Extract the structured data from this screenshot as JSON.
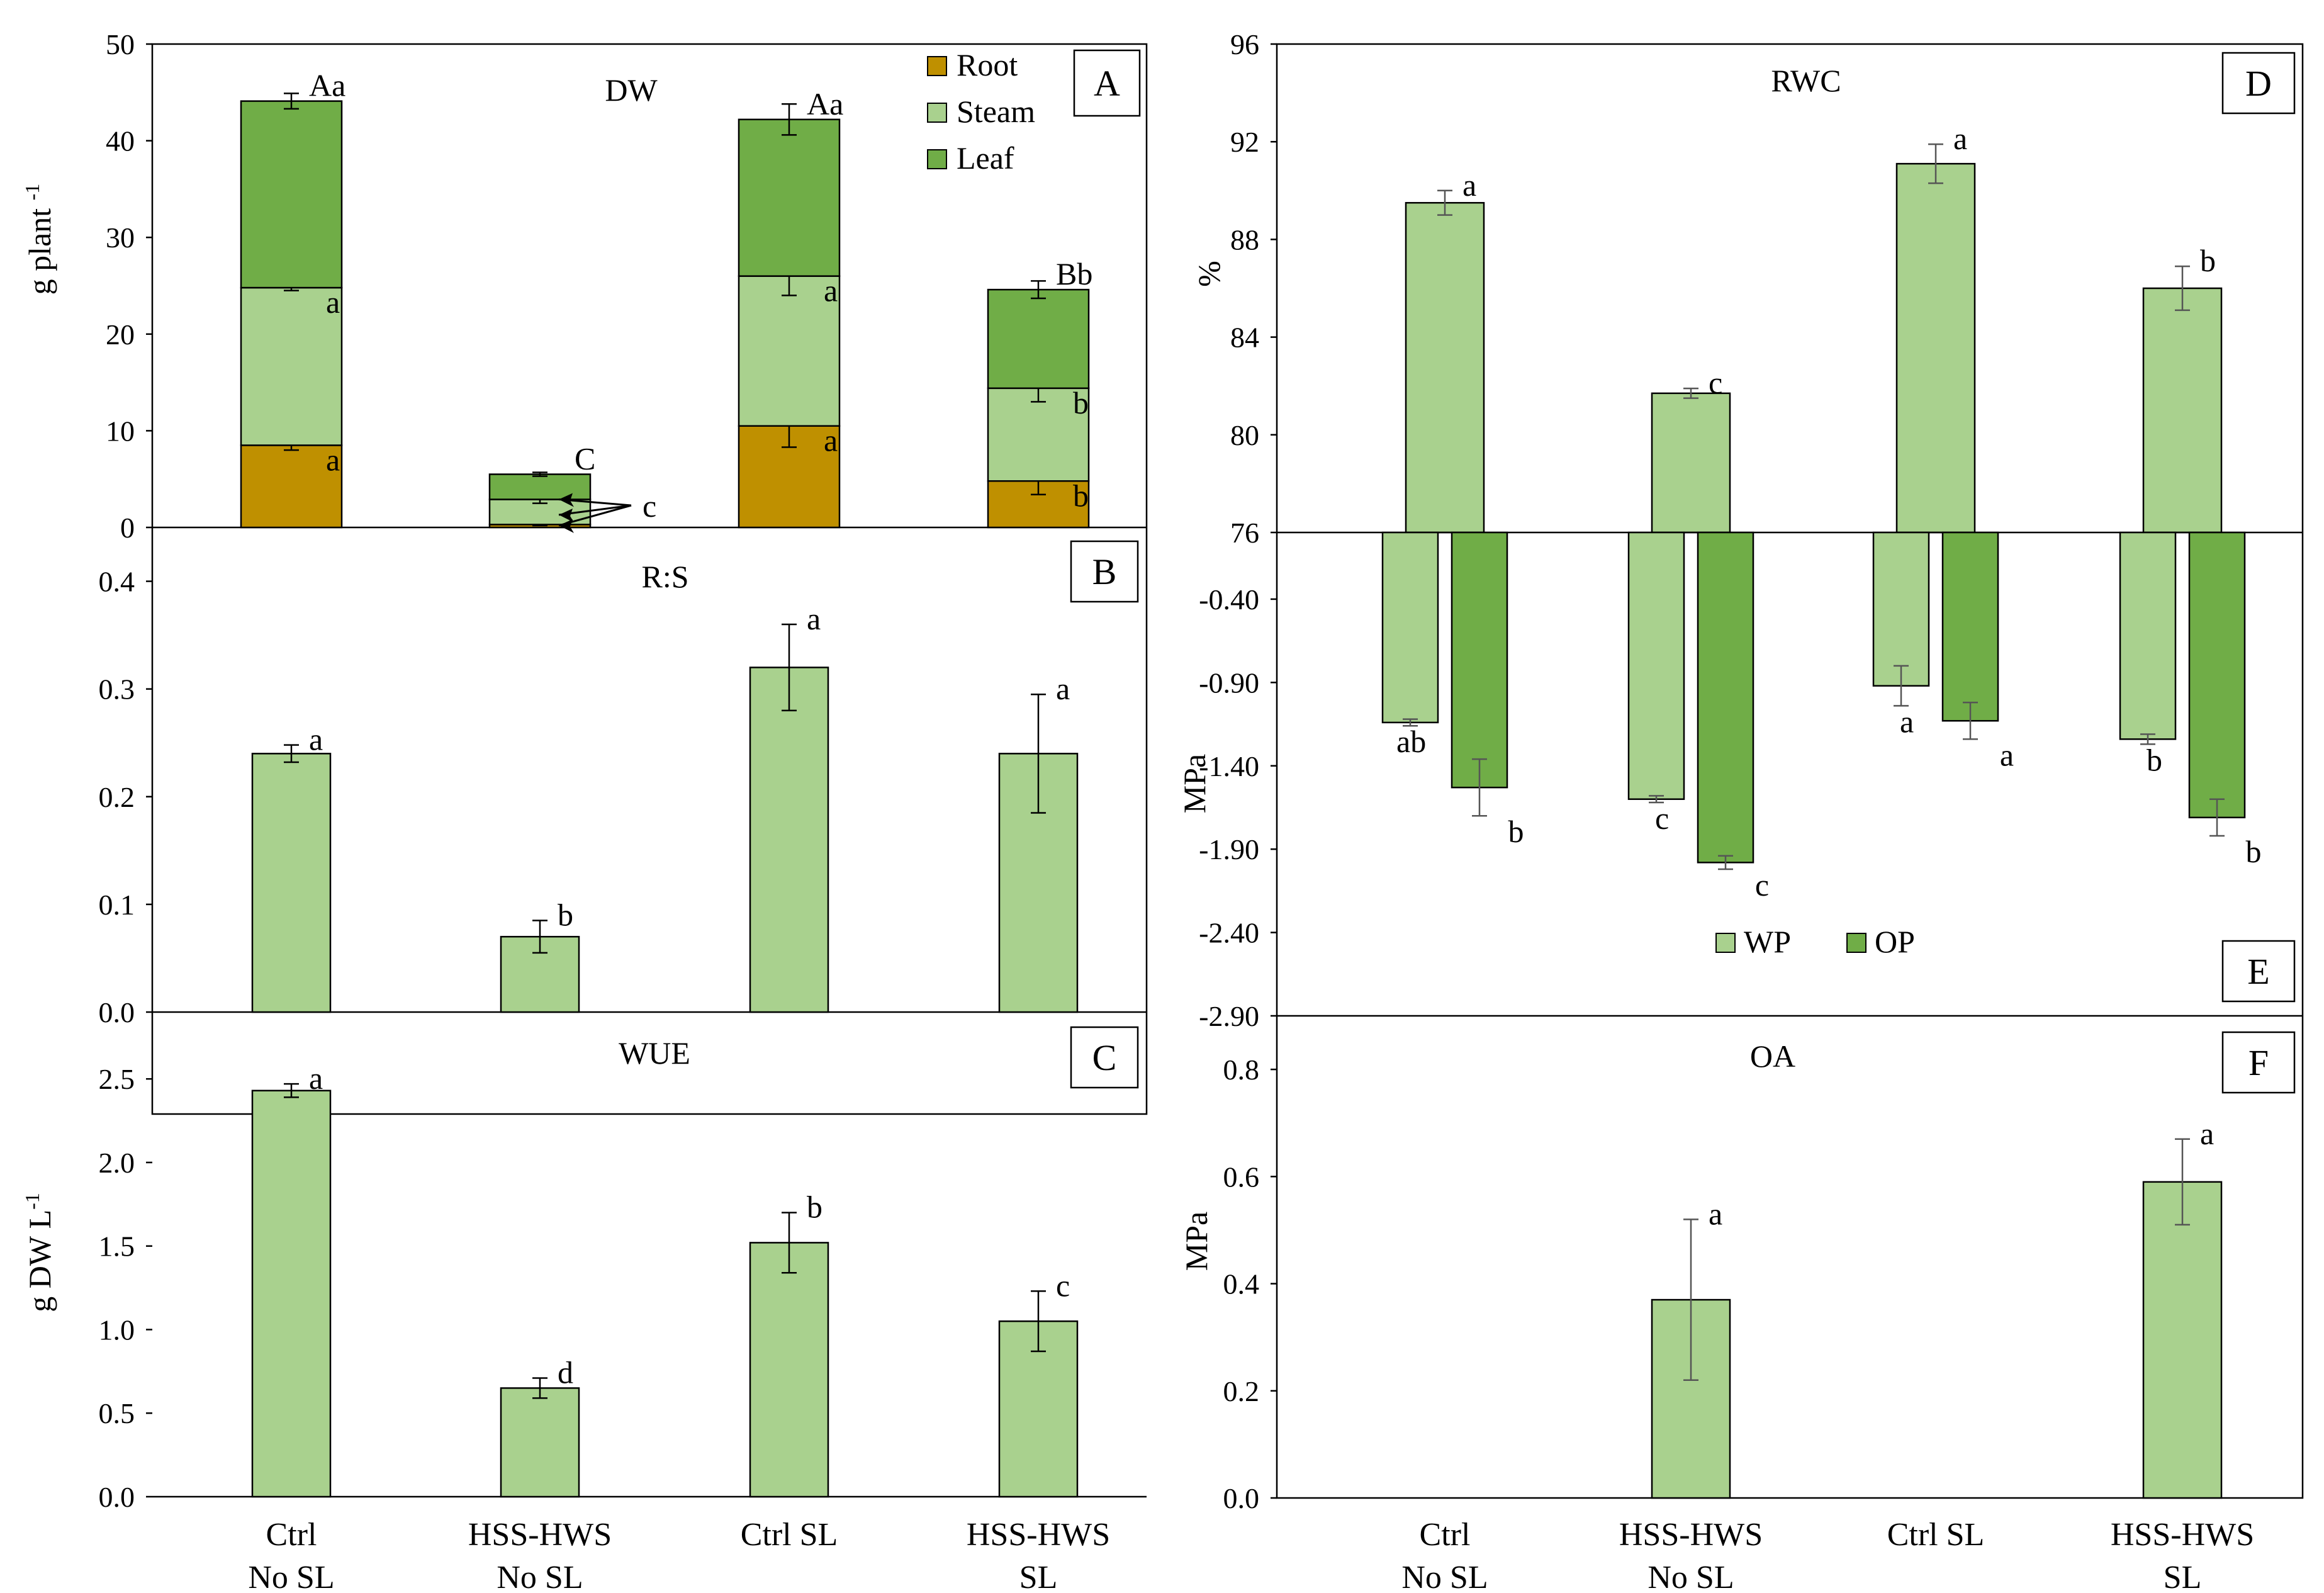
{
  "colors": {
    "root": "#BF9000",
    "stem": "#A9D18E",
    "leaf": "#70AD47"
  },
  "categories": [
    "Ctrl\nNo SL",
    "HSS-HWS\nNo SL",
    "Ctrl SL",
    "HSS-HWS\nSL"
  ],
  "chart_data": [
    {
      "id": "A",
      "type": "bar",
      "stacked": true,
      "title": "DW",
      "ylabel": "g plant -1",
      "ylim": [
        0,
        50
      ],
      "yticks": [
        "0",
        "10",
        "20",
        "30",
        "40",
        "50"
      ],
      "legend": [
        "Root",
        "Steam",
        "Leaf"
      ],
      "series": [
        {
          "name": "Root",
          "values": [
            8.5,
            0.3,
            10.5,
            4.8
          ],
          "err": [
            0.5,
            0.1,
            2.2,
            1.4
          ],
          "letters": [
            "a",
            "",
            "a",
            "b"
          ]
        },
        {
          "name": "Steam",
          "values": [
            16.3,
            2.6,
            15.5,
            9.6
          ],
          "err": [
            0.3,
            0.4,
            2.0,
            1.4
          ],
          "letters": [
            "a",
            "",
            "a",
            "b"
          ]
        },
        {
          "name": "Leaf",
          "values": [
            19.3,
            2.6,
            16.2,
            10.2
          ],
          "err": [
            0.8,
            0.2,
            1.6,
            0.9
          ],
          "letters": [
            "Aa",
            "C",
            "Aa",
            "Bb"
          ]
        }
      ],
      "annotation": "c"
    },
    {
      "id": "B",
      "type": "bar",
      "title": "R:S",
      "ylim": [
        0,
        0.45
      ],
      "yticks": [
        "0.0",
        "0.1",
        "0.2",
        "0.3",
        "0.4"
      ],
      "values": [
        0.24,
        0.07,
        0.32,
        0.24
      ],
      "err": [
        0.008,
        0.015,
        0.04,
        0.055
      ],
      "letters": [
        "a",
        "b",
        "a",
        "a"
      ]
    },
    {
      "id": "C",
      "type": "bar",
      "title": "WUE",
      "ylabel": "g DW L-1",
      "ylim": [
        0,
        2.9
      ],
      "yticks": [
        "0.0",
        "0.5",
        "1.0",
        "1.5",
        "2.0",
        "2.5"
      ],
      "values": [
        2.43,
        0.65,
        1.52,
        1.05
      ],
      "err": [
        0.04,
        0.06,
        0.18,
        0.18
      ],
      "letters": [
        "a",
        "d",
        "b",
        "c"
      ]
    },
    {
      "id": "D",
      "type": "bar",
      "title": "RWC",
      "ylabel": "%",
      "ylim": [
        76,
        96
      ],
      "yticks": [
        "76",
        "80",
        "84",
        "88",
        "92",
        "96"
      ],
      "values": [
        89.5,
        81.7,
        91.1,
        86.0
      ],
      "err": [
        0.5,
        0.2,
        0.8,
        0.9
      ],
      "letters": [
        "a",
        "c",
        "a",
        "b"
      ]
    },
    {
      "id": "E",
      "type": "bar",
      "ylabel": "MPa",
      "ylim": [
        -2.9,
        0.1
      ],
      "yticks": [
        "-0.40",
        "-0.90",
        "-1.40",
        "-1.90",
        "-2.40",
        "-2.90"
      ],
      "legend": [
        "WP",
        "OP"
      ],
      "series": [
        {
          "name": "WP",
          "values": [
            -1.14,
            -1.6,
            -0.92,
            -1.24
          ],
          "err": [
            0.02,
            0.02,
            0.12,
            0.03
          ],
          "letters": [
            "ab",
            "c",
            "a",
            "b"
          ]
        },
        {
          "name": "OP",
          "values": [
            -1.53,
            -1.98,
            -1.13,
            -1.71
          ],
          "err": [
            0.17,
            0.04,
            0.11,
            0.11
          ],
          "letters": [
            "b",
            "c",
            "a",
            "b"
          ]
        }
      ]
    },
    {
      "id": "F",
      "type": "bar",
      "title": "OA",
      "ylabel": "MPa",
      "ylim": [
        0,
        0.9
      ],
      "yticks": [
        "0.0",
        "0.2",
        "0.4",
        "0.6",
        "0.8"
      ],
      "values": [
        null,
        0.37,
        null,
        0.59
      ],
      "err": [
        0,
        0.15,
        0,
        0.08
      ],
      "letters": [
        "",
        "a",
        "",
        "a"
      ]
    }
  ]
}
